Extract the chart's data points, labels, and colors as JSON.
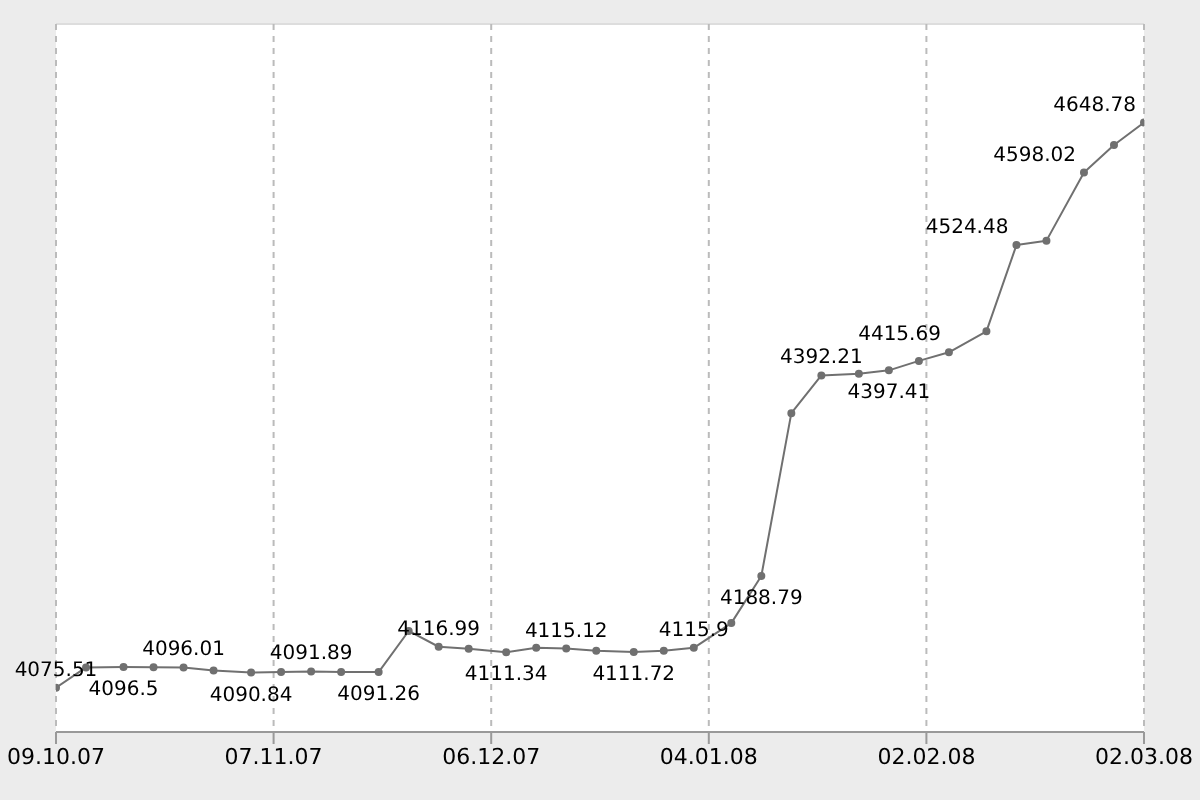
{
  "chart_data": {
    "type": "line",
    "x": [
      "2007-10-09",
      "2007-10-13",
      "2007-10-18",
      "2007-10-22",
      "2007-10-26",
      "2007-10-30",
      "2007-11-04",
      "2007-11-08",
      "2007-11-12",
      "2007-11-16",
      "2007-11-21",
      "2007-11-25",
      "2007-11-29",
      "2007-12-03",
      "2007-12-08",
      "2007-12-12",
      "2007-12-16",
      "2007-12-20",
      "2007-12-25",
      "2007-12-29",
      "2008-01-02",
      "2008-01-07",
      "2008-01-11",
      "2008-01-15",
      "2008-01-19",
      "2008-01-24",
      "2008-01-28",
      "2008-02-01",
      "2008-02-05",
      "2008-02-10",
      "2008-02-14",
      "2008-02-18",
      "2008-02-23",
      "2008-02-27",
      "2008-03-02"
    ],
    "series": [
      {
        "color": "#707070",
        "values": [
          4075.51,
          4096,
          4096.5,
          4096.3,
          4096.01,
          4093,
          4090.84,
          4091.3,
          4091.89,
          4091.5,
          4091.26,
          4133,
          4116.99,
          4115,
          4111.34,
          4116,
          4115.12,
          4113,
          4111.72,
          4113,
          4115.9,
          4141,
          4188.79,
          4354,
          4392.21,
          4394,
          4397.41,
          4407,
          4415.69,
          4437,
          4524.48,
          4529,
          4598.02,
          4626,
          4648.78
        ],
        "value_labels": [
          "4075.51",
          null,
          "4096.5",
          null,
          "4096.01",
          null,
          "4090.84",
          null,
          "4091.89",
          null,
          "4091.26",
          null,
          "4116.99",
          null,
          "4111.34",
          null,
          "4115.12",
          null,
          "4111.72",
          null,
          "4115.9",
          null,
          "4188.79",
          null,
          "4392.21",
          null,
          "4397.41",
          null,
          "4415.69",
          null,
          "4524.48",
          null,
          "4598.02",
          null,
          "4648.78"
        ]
      }
    ],
    "xlim": [
      "2007-10-09",
      "2008-03-02"
    ],
    "xticks": [
      {
        "value": "2007-10-09",
        "label": "09.10.07"
      },
      {
        "value": "2007-11-07",
        "label": "07.11.07"
      },
      {
        "value": "2007-12-06",
        "label": "06.12.07"
      },
      {
        "value": "2008-01-04",
        "label": "04.01.08"
      },
      {
        "value": "2008-02-02",
        "label": "02.02.08"
      },
      {
        "value": "2008-03-02",
        "label": "02.03.08"
      }
    ],
    "tick_labels": "x",
    "grid": true,
    "marker": "circle",
    "line_style": "solid"
  }
}
